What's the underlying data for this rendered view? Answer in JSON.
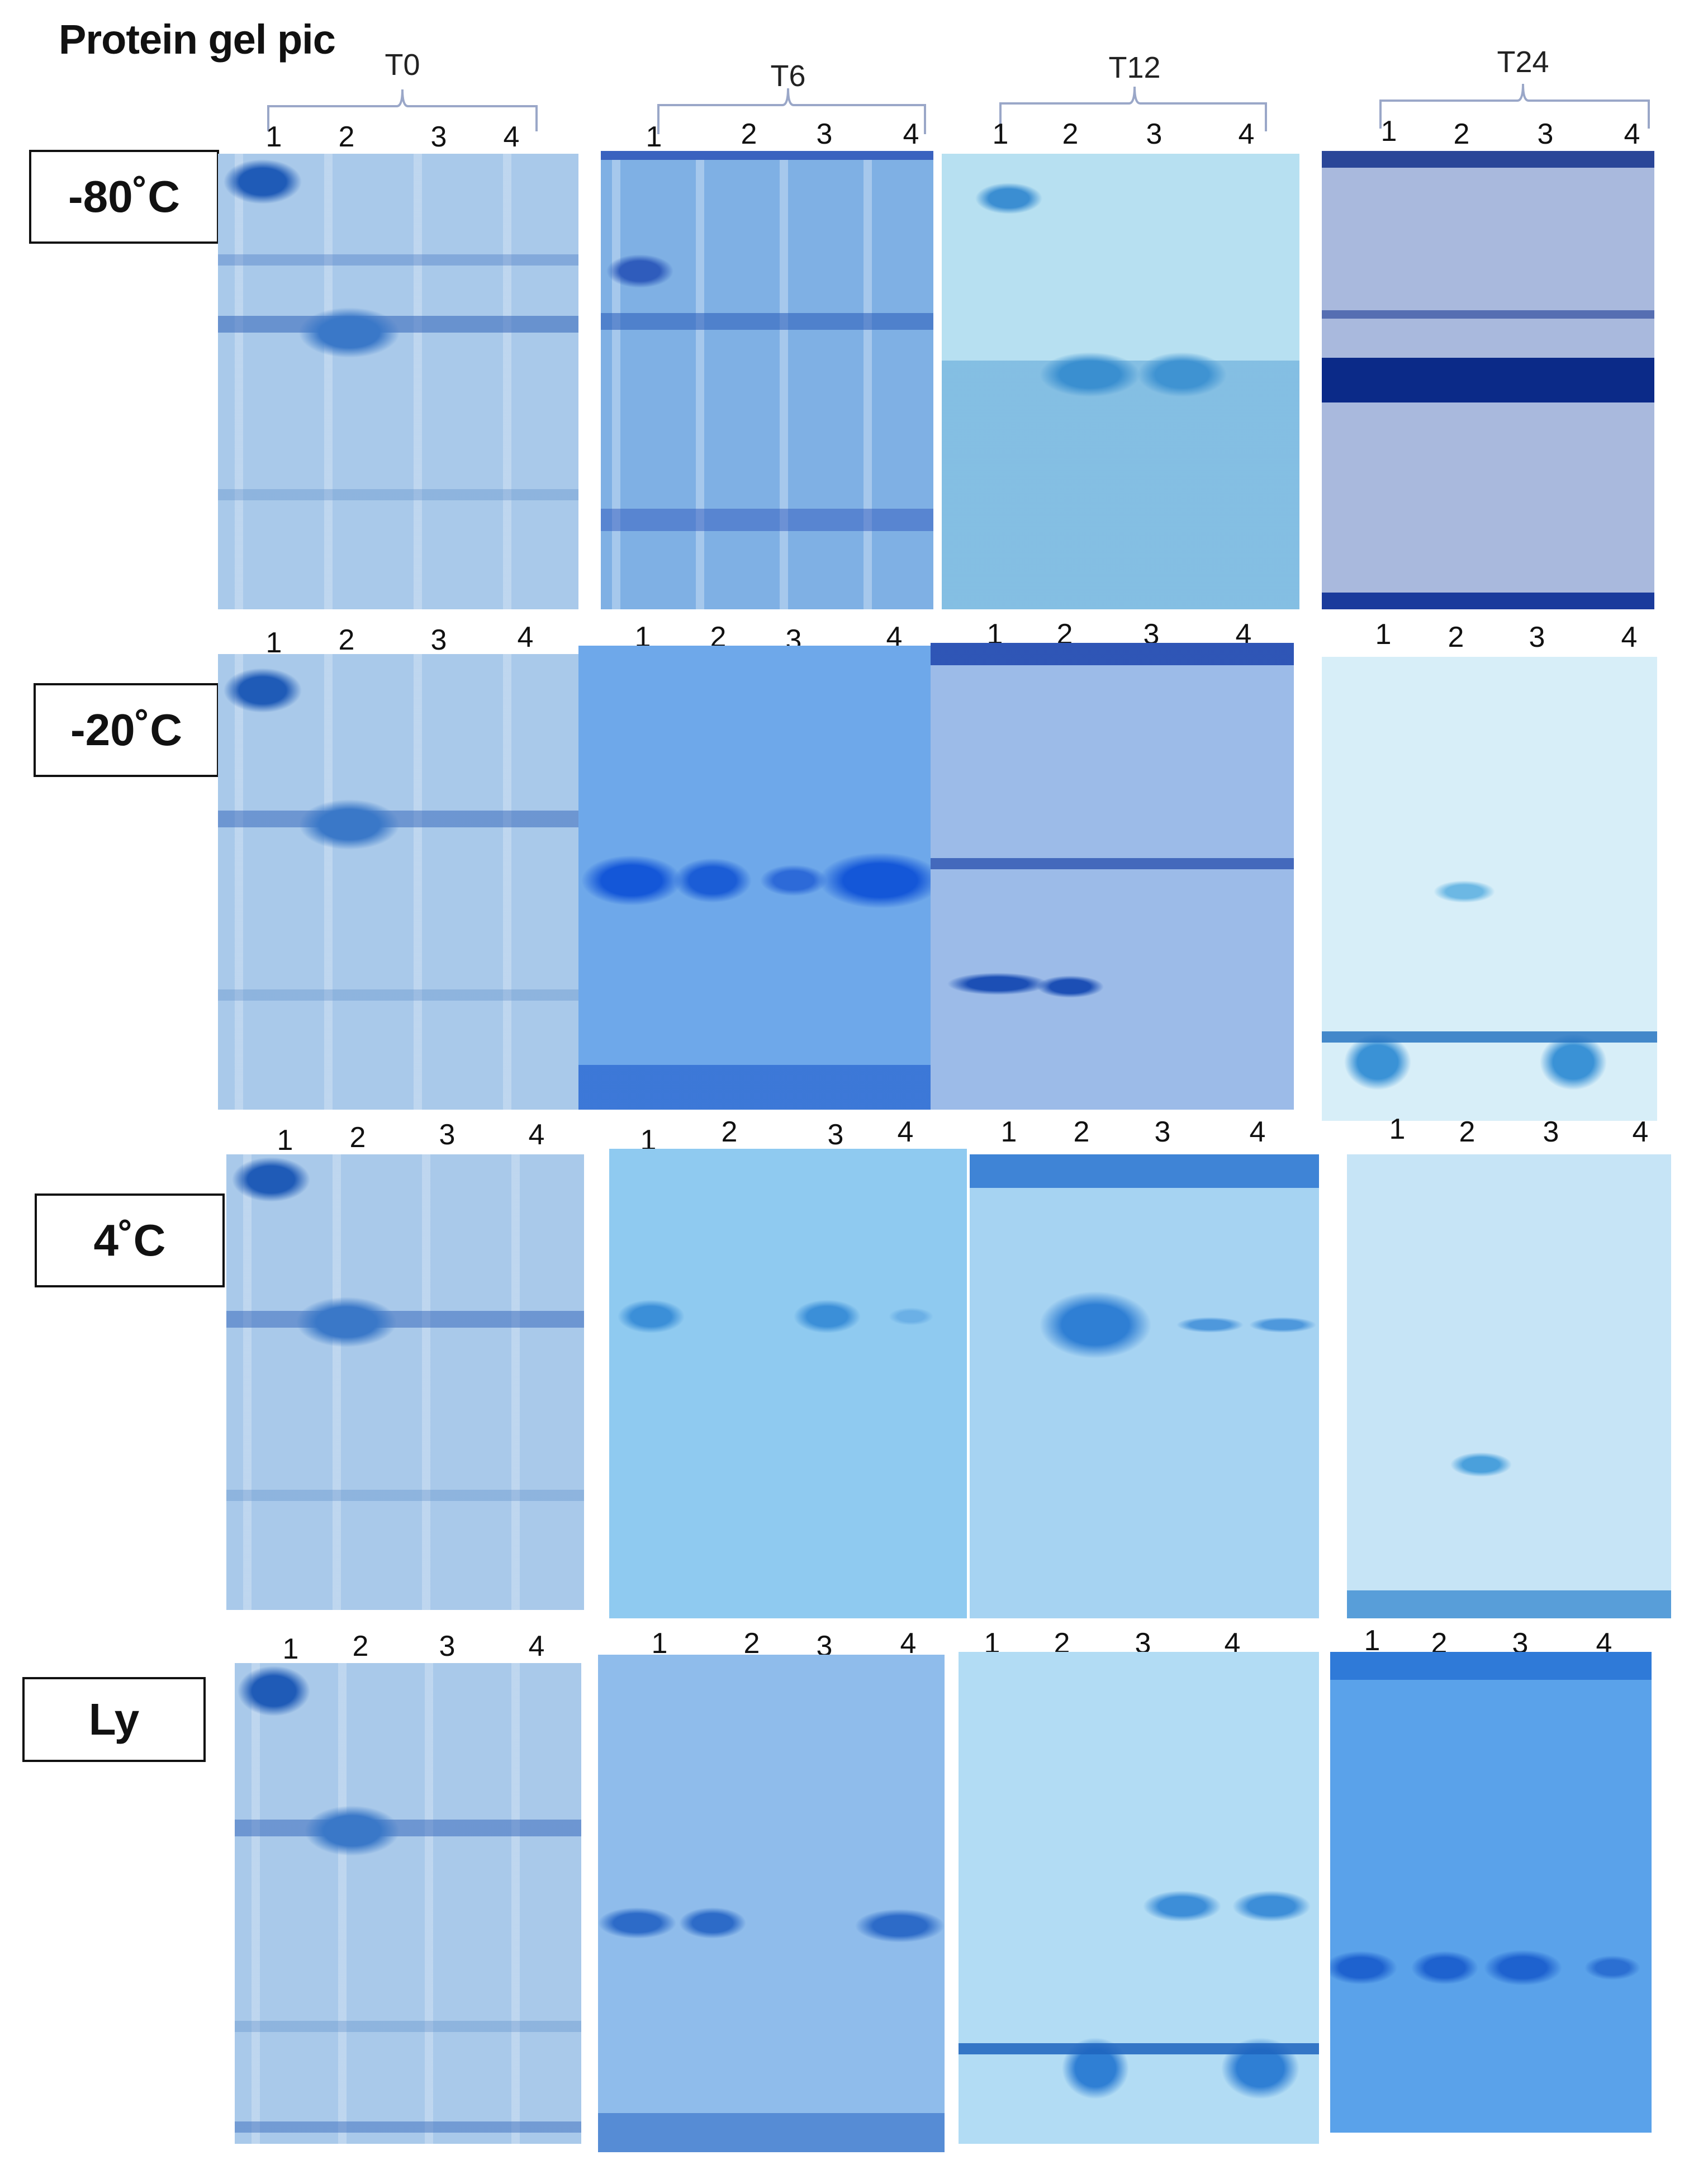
{
  "figure": {
    "title": "Protein gel pic",
    "timepoints": [
      "T0",
      "T6",
      "T12",
      "T24"
    ],
    "conditions": [
      "-80˚C",
      "-20˚C",
      "4˚C",
      "Ly"
    ],
    "lanes": [
      "1",
      "2",
      "3",
      "4"
    ]
  },
  "colors": {
    "gel_light": "#b9d6ee",
    "gel_mid": "#7fb1e0",
    "gel_dark": "#2a5ab8",
    "gel_navy": "#0b2a88",
    "border": "#111111"
  }
}
